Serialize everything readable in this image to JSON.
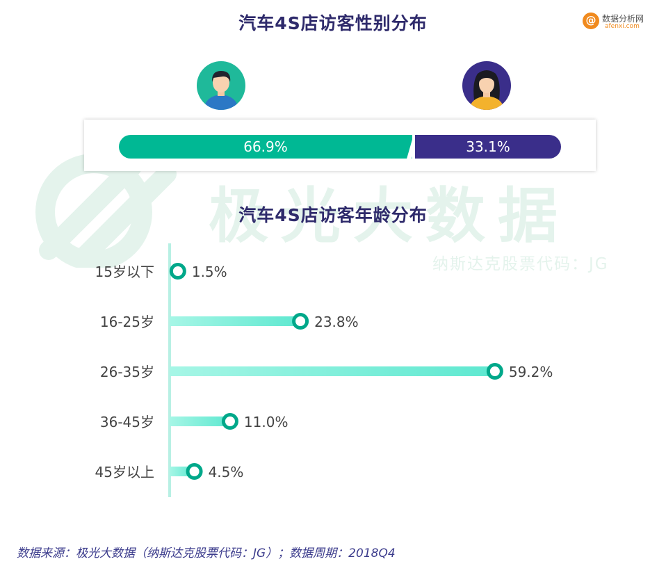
{
  "titles": {
    "gender": "汽车4S店访客性别分布",
    "age": "汽车4S店访客年龄分布"
  },
  "logo": {
    "name": "数据分析网",
    "url": "afenxi.com"
  },
  "watermark": {
    "name": "极光大数据",
    "sub": "纳斯达克股票代码：JG"
  },
  "gender": {
    "male_label": "66.9%",
    "female_label": "33.1%",
    "colors": {
      "male": "#00b894",
      "female": "#3a2e8a"
    }
  },
  "chart_data": {
    "type": "bar",
    "orientation": "horizontal",
    "title": "汽车4S店访客年龄分布",
    "categories": [
      "15岁以下",
      "16-25岁",
      "26-35岁",
      "36-45岁",
      "45岁以上"
    ],
    "values": [
      1.5,
      23.8,
      59.2,
      11.0,
      4.5
    ],
    "value_labels": [
      "1.5%",
      "23.8%",
      "59.2%",
      "11.0%",
      "4.5%"
    ],
    "xlim": [
      0,
      62
    ],
    "grid": false,
    "colors": {
      "bar": "#5ee8d0",
      "marker": "#00a88a",
      "axis": "#b8f0e4"
    }
  },
  "footer": "数据来源：极光大数据（纳斯达克股票代码：JG）；数据周期：2018Q4"
}
